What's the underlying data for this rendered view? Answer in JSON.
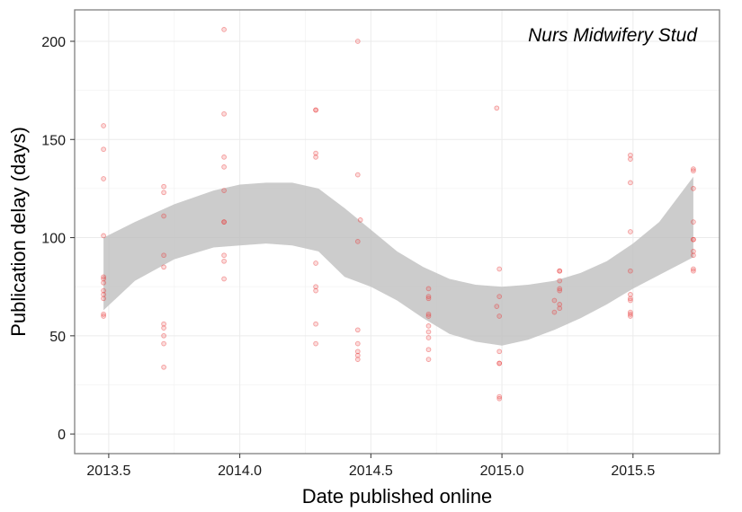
{
  "chart_data": {
    "type": "scatter",
    "annotation": "Nurs Midwifery Stud",
    "xlabel": "Date published online",
    "ylabel": "Publication delay (days)",
    "xlim": [
      2013.37,
      2015.83
    ],
    "ylim": [
      -10,
      216
    ],
    "x_ticks": [
      2013.5,
      2014.0,
      2014.5,
      2015.0,
      2015.5
    ],
    "x_tick_labels": [
      "2013.5",
      "2014.0",
      "2014.5",
      "2015.0",
      "2015.5"
    ],
    "y_ticks": [
      0,
      50,
      100,
      150,
      200
    ],
    "y_tick_labels": [
      "0",
      "50",
      "100",
      "150",
      "200"
    ],
    "grid": true,
    "colors": {
      "points": "#e8393a",
      "band": "#bfbfbf",
      "panel_border": "#7f7f7f",
      "grid": "#ebebeb"
    },
    "series": [
      {
        "values": [
          {
            "x": 2013.48,
            "y": 157
          },
          {
            "x": 2013.48,
            "y": 145
          },
          {
            "x": 2013.48,
            "y": 130
          },
          {
            "x": 2013.48,
            "y": 101
          },
          {
            "x": 2013.48,
            "y": 80
          },
          {
            "x": 2013.48,
            "y": 79
          },
          {
            "x": 2013.48,
            "y": 77
          },
          {
            "x": 2013.48,
            "y": 73
          },
          {
            "x": 2013.48,
            "y": 71
          },
          {
            "x": 2013.48,
            "y": 69
          },
          {
            "x": 2013.48,
            "y": 61
          },
          {
            "x": 2013.48,
            "y": 60
          },
          {
            "x": 2013.71,
            "y": 126
          },
          {
            "x": 2013.71,
            "y": 123
          },
          {
            "x": 2013.71,
            "y": 111
          },
          {
            "x": 2013.71,
            "y": 91
          },
          {
            "x": 2013.71,
            "y": 85
          },
          {
            "x": 2013.71,
            "y": 56
          },
          {
            "x": 2013.71,
            "y": 54
          },
          {
            "x": 2013.71,
            "y": 50
          },
          {
            "x": 2013.71,
            "y": 46
          },
          {
            "x": 2013.71,
            "y": 34
          },
          {
            "x": 2013.94,
            "y": 206
          },
          {
            "x": 2013.94,
            "y": 163
          },
          {
            "x": 2013.94,
            "y": 141
          },
          {
            "x": 2013.94,
            "y": 136
          },
          {
            "x": 2013.94,
            "y": 124
          },
          {
            "x": 2013.94,
            "y": 108
          },
          {
            "x": 2013.94,
            "y": 108
          },
          {
            "x": 2013.94,
            "y": 91
          },
          {
            "x": 2013.94,
            "y": 88
          },
          {
            "x": 2013.94,
            "y": 79
          },
          {
            "x": 2014.29,
            "y": 165
          },
          {
            "x": 2014.29,
            "y": 165
          },
          {
            "x": 2014.29,
            "y": 143
          },
          {
            "x": 2014.29,
            "y": 141
          },
          {
            "x": 2014.29,
            "y": 87
          },
          {
            "x": 2014.29,
            "y": 75
          },
          {
            "x": 2014.29,
            "y": 73
          },
          {
            "x": 2014.29,
            "y": 56
          },
          {
            "x": 2014.29,
            "y": 46
          },
          {
            "x": 2014.45,
            "y": 200
          },
          {
            "x": 2014.45,
            "y": 132
          },
          {
            "x": 2014.46,
            "y": 109
          },
          {
            "x": 2014.45,
            "y": 98
          },
          {
            "x": 2014.45,
            "y": 53
          },
          {
            "x": 2014.45,
            "y": 46
          },
          {
            "x": 2014.45,
            "y": 42
          },
          {
            "x": 2014.45,
            "y": 40
          },
          {
            "x": 2014.45,
            "y": 38
          },
          {
            "x": 2014.72,
            "y": 74
          },
          {
            "x": 2014.72,
            "y": 70
          },
          {
            "x": 2014.72,
            "y": 69
          },
          {
            "x": 2014.72,
            "y": 61
          },
          {
            "x": 2014.72,
            "y": 60
          },
          {
            "x": 2014.72,
            "y": 55
          },
          {
            "x": 2014.72,
            "y": 52
          },
          {
            "x": 2014.72,
            "y": 49
          },
          {
            "x": 2014.72,
            "y": 43
          },
          {
            "x": 2014.72,
            "y": 38
          },
          {
            "x": 2014.98,
            "y": 166
          },
          {
            "x": 2014.99,
            "y": 84
          },
          {
            "x": 2014.99,
            "y": 70
          },
          {
            "x": 2014.98,
            "y": 65
          },
          {
            "x": 2014.99,
            "y": 60
          },
          {
            "x": 2014.99,
            "y": 42
          },
          {
            "x": 2014.99,
            "y": 36
          },
          {
            "x": 2014.99,
            "y": 36
          },
          {
            "x": 2014.99,
            "y": 19
          },
          {
            "x": 2014.99,
            "y": 18
          },
          {
            "x": 2015.2,
            "y": 68
          },
          {
            "x": 2015.2,
            "y": 62
          },
          {
            "x": 2015.22,
            "y": 83
          },
          {
            "x": 2015.22,
            "y": 83
          },
          {
            "x": 2015.22,
            "y": 78
          },
          {
            "x": 2015.22,
            "y": 74
          },
          {
            "x": 2015.22,
            "y": 73
          },
          {
            "x": 2015.22,
            "y": 66
          },
          {
            "x": 2015.22,
            "y": 64
          },
          {
            "x": 2015.49,
            "y": 142
          },
          {
            "x": 2015.49,
            "y": 140
          },
          {
            "x": 2015.49,
            "y": 128
          },
          {
            "x": 2015.49,
            "y": 103
          },
          {
            "x": 2015.49,
            "y": 83
          },
          {
            "x": 2015.49,
            "y": 71
          },
          {
            "x": 2015.49,
            "y": 69
          },
          {
            "x": 2015.49,
            "y": 68
          },
          {
            "x": 2015.49,
            "y": 62
          },
          {
            "x": 2015.49,
            "y": 61
          },
          {
            "x": 2015.49,
            "y": 60
          },
          {
            "x": 2015.73,
            "y": 135
          },
          {
            "x": 2015.73,
            "y": 134
          },
          {
            "x": 2015.73,
            "y": 125
          },
          {
            "x": 2015.73,
            "y": 108
          },
          {
            "x": 2015.73,
            "y": 99
          },
          {
            "x": 2015.73,
            "y": 99
          },
          {
            "x": 2015.73,
            "y": 93
          },
          {
            "x": 2015.73,
            "y": 91
          },
          {
            "x": 2015.73,
            "y": 84
          },
          {
            "x": 2015.73,
            "y": 83
          }
        ]
      }
    ],
    "smooth_band": {
      "x": [
        2013.48,
        2013.6,
        2013.75,
        2013.9,
        2014.0,
        2014.1,
        2014.2,
        2014.3,
        2014.4,
        2014.5,
        2014.6,
        2014.7,
        2014.8,
        2014.9,
        2015.0,
        2015.1,
        2015.2,
        2015.3,
        2015.4,
        2015.5,
        2015.6,
        2015.73
      ],
      "upper": [
        100,
        108,
        117,
        124,
        127,
        128,
        128,
        125,
        115,
        104,
        93,
        85,
        79,
        76,
        75,
        76,
        78,
        82,
        88,
        97,
        108,
        131
      ],
      "lower": [
        63,
        78,
        89,
        95,
        96,
        97,
        96,
        93,
        80,
        75,
        68,
        59,
        51,
        47,
        45,
        48,
        53,
        59,
        66,
        74,
        81,
        90
      ]
    }
  }
}
